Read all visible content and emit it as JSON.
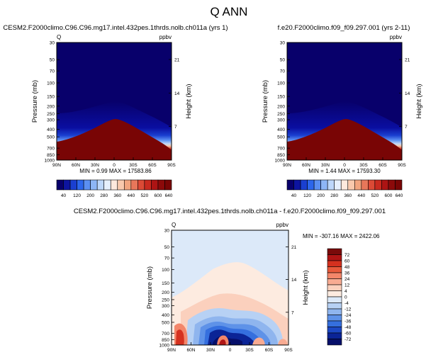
{
  "figure": {
    "title": "Q ANN"
  },
  "chart_data": [
    {
      "type": "heatmap",
      "title": "CESM2.F2000climo.C96.C96.mg17.intel.432pes.1thrds.nolb.ch011a (yrs 1)",
      "left_label": "Q",
      "right_label": "ppbv",
      "xlabel": "",
      "ylabel": "Pressure (mb)",
      "y2label": "Height (km)",
      "x_ticks": [
        "90N",
        "60N",
        "30N",
        "0",
        "30S",
        "60S",
        "90S"
      ],
      "y_ticks": [
        "30",
        "50",
        "70",
        "100",
        "150",
        "200",
        "250",
        "300",
        "400",
        "500",
        "700",
        "850",
        "1000"
      ],
      "y2_ticks": [
        "21",
        "14",
        "7"
      ],
      "y_scale": "log",
      "ylim": [
        1000,
        30
      ],
      "stats": "MIN =   0.99   MAX = 17583.86",
      "min": 0.99,
      "max": 17583.86,
      "colorbar_labels": [
        "40",
        "120",
        "200",
        "280",
        "360",
        "440",
        "520",
        "600",
        "640"
      ],
      "colorbar_levels": [
        20,
        40,
        80,
        120,
        160,
        200,
        240,
        280,
        320,
        360,
        400,
        440,
        480,
        520,
        560,
        600,
        640
      ],
      "colormap": [
        "#08006b",
        "#0d14a0",
        "#1a3fd0",
        "#2c66ec",
        "#5b8ff2",
        "#8db6f6",
        "#bdd7fa",
        "#e6f0fd",
        "#fde9dd",
        "#f9c9ad",
        "#f2a57f",
        "#e8775a",
        "#dc4a36",
        "#c92a1f",
        "#ad1414",
        "#8c0a0a",
        "#790505"
      ]
    },
    {
      "type": "heatmap",
      "title": "f.e20.F2000climo.f09_f09.297.001 (yrs 2-11)",
      "left_label": "",
      "right_label": "ppbv",
      "xlabel": "",
      "ylabel": "Pressure (mb)",
      "y2label": "Height (km)",
      "x_ticks": [
        "90N",
        "60N",
        "30N",
        "0",
        "30S",
        "60S",
        "90S"
      ],
      "y_ticks": [
        "30",
        "50",
        "70",
        "100",
        "150",
        "200",
        "250",
        "300",
        "400",
        "500",
        "700",
        "850",
        "1000"
      ],
      "y2_ticks": [
        "21",
        "14",
        "7"
      ],
      "y_scale": "log",
      "ylim": [
        1000,
        30
      ],
      "stats": "MIN =   1.44   MAX = 17593.30",
      "min": 1.44,
      "max": 17593.3,
      "colorbar_labels": [
        "40",
        "120",
        "200",
        "280",
        "360",
        "440",
        "520",
        "600",
        "640"
      ],
      "colorbar_levels": [
        20,
        40,
        80,
        120,
        160,
        200,
        240,
        280,
        320,
        360,
        400,
        440,
        480,
        520,
        560,
        600,
        640
      ]
    },
    {
      "type": "heatmap",
      "title": "CESM2.F2000climo.C96.C96.mg17.intel.432pes.1thrds.nolb.ch011a - f.e20.F2000climo.f09_f09.297.001",
      "left_label": "Q",
      "right_label": "ppbv",
      "xlabel": "",
      "ylabel": "Pressure (mb)",
      "y2label": "Height (km)",
      "x_ticks": [
        "90N",
        "60N",
        "30N",
        "0",
        "30S",
        "60S",
        "90S"
      ],
      "y_ticks": [
        "30",
        "50",
        "70",
        "100",
        "150",
        "200",
        "250",
        "300",
        "400",
        "500",
        "700",
        "850",
        "1000"
      ],
      "y2_ticks": [
        "21",
        "14",
        "7"
      ],
      "y_scale": "log",
      "ylim": [
        1000,
        30
      ],
      "stats": "MIN = -307.16   MAX = 2422.06",
      "min": -307.16,
      "max": 2422.06,
      "colorbar_labels": [
        "72",
        "60",
        "48",
        "36",
        "24",
        "12",
        "4",
        "0",
        "-4",
        "-12",
        "-24",
        "-36",
        "-48",
        "-60",
        "-72"
      ],
      "colorbar_levels": [
        72,
        60,
        48,
        36,
        24,
        12,
        4,
        0,
        -4,
        -12,
        -24,
        -36,
        -48,
        -60,
        -72
      ],
      "colormap": [
        "#7a0a0a",
        "#b01414",
        "#d5311f",
        "#e85a3c",
        "#f3866a",
        "#f8ab92",
        "#fbd0bd",
        "#fdebe0",
        "#dce9f9",
        "#b7d1f4",
        "#8fb5ee",
        "#5e92e8",
        "#356fde",
        "#1c48c4",
        "#0b2496",
        "#060f6a"
      ]
    }
  ]
}
